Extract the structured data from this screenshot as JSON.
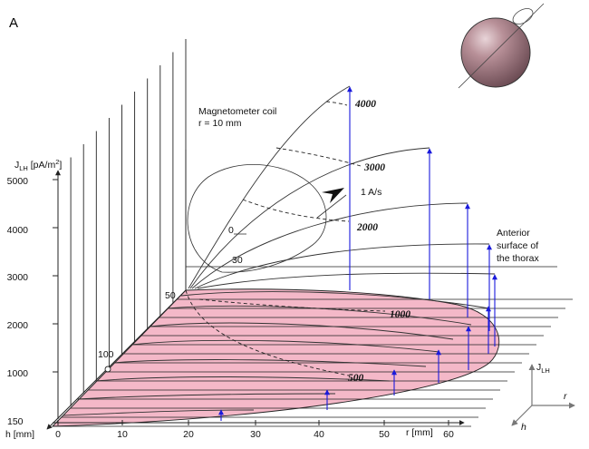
{
  "panel_label": "A",
  "axes": {
    "j_axis_label_main": "J",
    "j_axis_label_sub": "LH",
    "j_axis_label_unit": " [pA/m",
    "j_axis_label_sup": "2",
    "j_axis_label_close": "]",
    "j_ticks": [
      "5000",
      "4000",
      "3000",
      "2000",
      "1000"
    ],
    "r_axis_label": "r [mm]",
    "r_ticks": [
      "0",
      "10",
      "20",
      "30",
      "40",
      "50",
      "60"
    ],
    "h_axis_label": "h [mm]",
    "h_ticks": [
      "150",
      "100",
      "50"
    ]
  },
  "annotations": {
    "coil_title": "Magnetometer coil",
    "coil_radius": "r = 10 mm",
    "current": "1 A/s",
    "surface_line1": "Anterior",
    "surface_line2": "surface of",
    "surface_line3": "the thorax",
    "coil_scale_0": "0",
    "coil_scale_30": "30",
    "contours": [
      "4000",
      "3000",
      "2000",
      "1000",
      "500"
    ]
  },
  "orientation": {
    "j_main": "J",
    "j_sub": "LH",
    "r": "r",
    "h": "h"
  },
  "colors": {
    "surface_fill": "#f4b8c8",
    "arrows": "#1a1adc",
    "lines": "#222222",
    "sphere": "#b89098"
  }
}
